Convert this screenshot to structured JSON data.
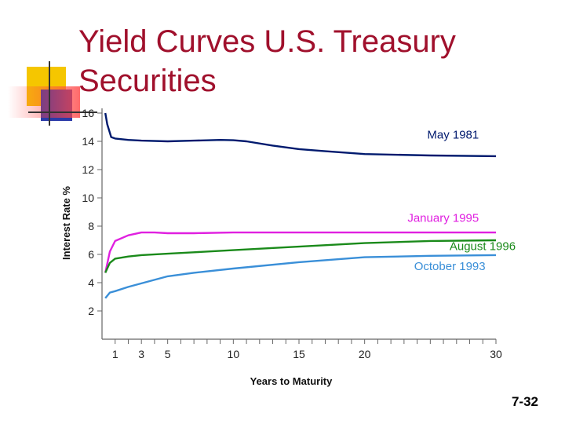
{
  "slide": {
    "title": "Yield Curves U.S. Treasury Securities",
    "number": "7-32",
    "colors": {
      "title": "#a0102c",
      "deco_yellow": "#f5c600",
      "deco_blue": "#2b3aa8",
      "deco_red": "#ff5a5a"
    }
  },
  "chart_data": {
    "type": "line",
    "title": "",
    "xlabel": "Years to Maturity",
    "ylabel": "Interest Rate %",
    "xlim": [
      0,
      30
    ],
    "ylim": [
      0,
      16
    ],
    "x_ticks": [
      1,
      3,
      5,
      10,
      15,
      20,
      30
    ],
    "y_ticks": [
      2,
      4,
      6,
      8,
      10,
      12,
      14,
      16
    ],
    "grid": false,
    "series": [
      {
        "name": "May 1981",
        "color": "#001a6e",
        "points": [
          [
            0.25,
            16.0
          ],
          [
            0.4,
            15.2
          ],
          [
            0.7,
            14.3
          ],
          [
            1,
            14.2
          ],
          [
            2,
            14.1
          ],
          [
            3,
            14.05
          ],
          [
            5,
            14.0
          ],
          [
            7,
            14.05
          ],
          [
            9,
            14.1
          ],
          [
            10,
            14.08
          ],
          [
            11,
            14.0
          ],
          [
            13,
            13.7
          ],
          [
            15,
            13.45
          ],
          [
            17,
            13.3
          ],
          [
            20,
            13.1
          ],
          [
            25,
            13.0
          ],
          [
            30,
            12.95
          ]
        ],
        "label": {
          "x": 28.7,
          "y": 14.2
        }
      },
      {
        "name": "January 1995",
        "color": "#e020e0",
        "points": [
          [
            0.25,
            4.7
          ],
          [
            0.6,
            6.2
          ],
          [
            1,
            6.95
          ],
          [
            2,
            7.35
          ],
          [
            3,
            7.55
          ],
          [
            4,
            7.55
          ],
          [
            5,
            7.5
          ],
          [
            7,
            7.5
          ],
          [
            10,
            7.55
          ],
          [
            15,
            7.55
          ],
          [
            20,
            7.55
          ],
          [
            30,
            7.55
          ]
        ],
        "label": {
          "x": 28.7,
          "y": 8.3
        }
      },
      {
        "name": "August 1996",
        "color": "#1a8a1a",
        "points": [
          [
            0.25,
            4.7
          ],
          [
            0.6,
            5.4
          ],
          [
            1,
            5.7
          ],
          [
            2,
            5.85
          ],
          [
            3,
            5.95
          ],
          [
            5,
            6.05
          ],
          [
            7,
            6.15
          ],
          [
            10,
            6.3
          ],
          [
            15,
            6.55
          ],
          [
            20,
            6.8
          ],
          [
            25,
            6.95
          ],
          [
            30,
            7.0
          ]
        ],
        "label": {
          "x": 31.5,
          "y": 6.3
        }
      },
      {
        "name": "October 1993",
        "color": "#3a8fd8",
        "points": [
          [
            0.25,
            2.9
          ],
          [
            0.6,
            3.3
          ],
          [
            1,
            3.4
          ],
          [
            2,
            3.7
          ],
          [
            3,
            3.95
          ],
          [
            4,
            4.2
          ],
          [
            5,
            4.45
          ],
          [
            7,
            4.7
          ],
          [
            10,
            5.0
          ],
          [
            15,
            5.45
          ],
          [
            20,
            5.8
          ],
          [
            25,
            5.9
          ],
          [
            30,
            5.95
          ]
        ],
        "label": {
          "x": 29.2,
          "y": 4.9
        }
      }
    ]
  }
}
